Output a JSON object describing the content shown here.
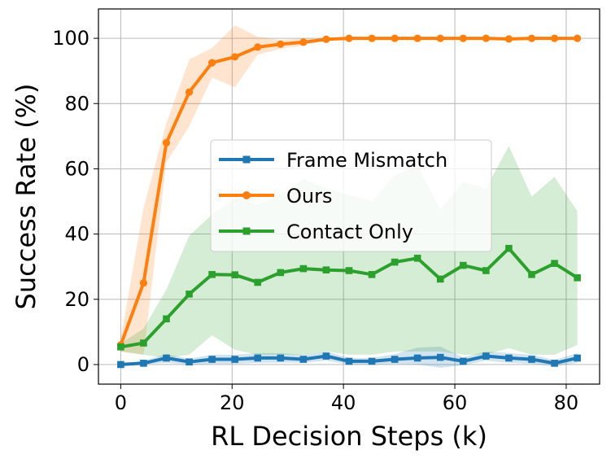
{
  "chart_data": {
    "type": "line",
    "title": "",
    "xlabel": "RL Decision Steps (k)",
    "ylabel": "Success Rate (%)",
    "xlim": [
      -4,
      86
    ],
    "ylim": [
      -6,
      109
    ],
    "xticks": [
      0,
      20,
      40,
      60,
      80
    ],
    "yticks": [
      0,
      20,
      40,
      60,
      80,
      100
    ],
    "grid": true,
    "legend_position": "center-right",
    "x": [
      0,
      4.1,
      8.2,
      12.3,
      16.4,
      20.5,
      24.6,
      28.7,
      32.8,
      36.9,
      41,
      45.1,
      49.2,
      53.3,
      57.4,
      61.5,
      65.6,
      69.7,
      73.8,
      77.9,
      82
    ],
    "series": [
      {
        "name": "Frame Mismatch",
        "color": "#1f77b4",
        "marker": "square",
        "values": [
          0,
          0.4,
          2,
          0.8,
          1.6,
          1.6,
          2,
          2,
          1.6,
          2.6,
          1,
          1,
          1.6,
          2,
          2.2,
          1,
          2.6,
          2,
          1.6,
          0.4,
          2
        ],
        "band_lower": [
          0,
          0,
          0.5,
          0,
          0.2,
          0.2,
          0.5,
          0.6,
          0.5,
          1.2,
          0,
          0,
          0.2,
          0,
          -1,
          -0.2,
          1.2,
          0.5,
          0.2,
          -0.5,
          0.5
        ],
        "band_upper": [
          0,
          1.2,
          3.2,
          1.8,
          3,
          3,
          3.5,
          3.5,
          3,
          4,
          2,
          2,
          3.2,
          5.2,
          5.5,
          2.2,
          4,
          3.5,
          3,
          1.4,
          3.5
        ]
      },
      {
        "name": "Ours",
        "color": "#ff7f0e",
        "marker": "circle",
        "values": [
          6,
          25,
          68,
          83.5,
          92.5,
          94.3,
          97.3,
          98.2,
          98.8,
          99.7,
          100,
          100,
          100,
          100,
          100,
          100,
          100,
          99.8,
          100,
          100,
          100
        ],
        "band_lower": [
          4,
          3,
          62,
          73,
          88,
          85,
          95,
          96.8,
          97.8,
          99.3,
          99.8,
          100,
          100,
          100,
          100,
          100,
          100,
          99.4,
          100,
          100,
          100
        ],
        "band_upper": [
          8,
          48,
          74,
          93.5,
          97,
          104,
          100.5,
          99.5,
          100,
          100,
          100.2,
          100,
          100,
          100,
          100,
          100,
          100,
          100.2,
          100,
          100,
          100
        ]
      },
      {
        "name": "Contact Only",
        "color": "#2ca02c",
        "marker": "square",
        "values": [
          5.4,
          6.6,
          14,
          21.6,
          27.6,
          27.5,
          25.2,
          28.2,
          29.4,
          29,
          28.8,
          27.6,
          31.4,
          32.6,
          26.2,
          30.4,
          28.8,
          35.6,
          27.6,
          31,
          26.6
        ],
        "band_lower": [
          4,
          3,
          2,
          3,
          9,
          4.5,
          3,
          3,
          3,
          4,
          3,
          3,
          4,
          4,
          4,
          3,
          3,
          5,
          3,
          3,
          6
        ],
        "band_upper": [
          6.5,
          11,
          23,
          39.5,
          46,
          51,
          49,
          52,
          57,
          54,
          52,
          50,
          58,
          61,
          47.5,
          56,
          54,
          67,
          51.5,
          57.5,
          47
        ]
      }
    ]
  }
}
